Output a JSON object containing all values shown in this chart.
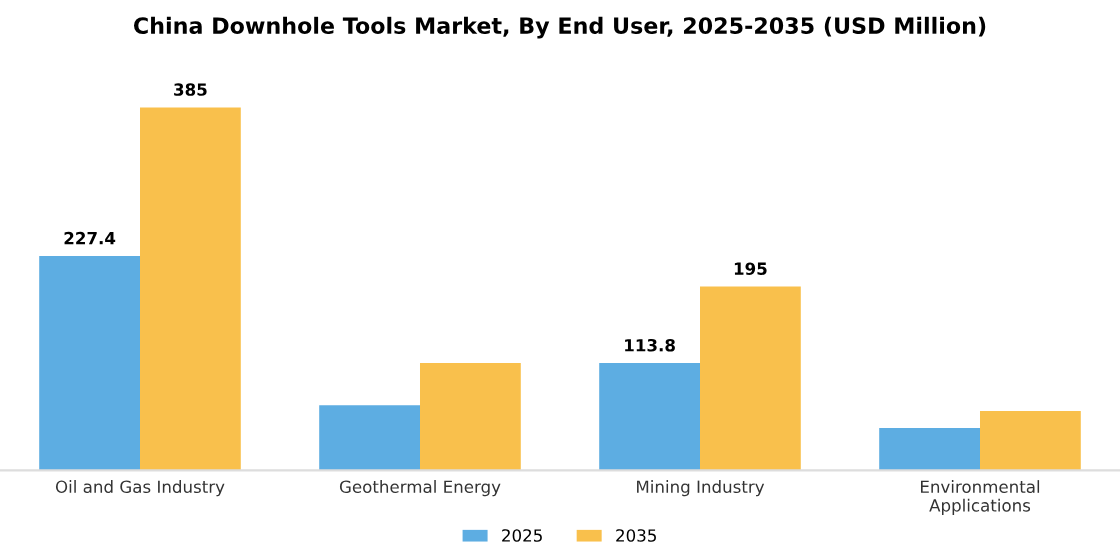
{
  "chart_data": {
    "type": "bar",
    "title": "China Downhole Tools Market, By End User, 2025-2035 (USD Million)",
    "categories": [
      "Oil and Gas Industry",
      "Geothermal Energy",
      "Mining Industry",
      "Environmental\nApplications"
    ],
    "series": [
      {
        "name": "2025",
        "color": "#5dade2",
        "values": [
          227.4,
          69,
          113.8,
          45
        ],
        "value_labels": [
          "227.4",
          null,
          "113.8",
          null
        ]
      },
      {
        "name": "2035",
        "color": "#f9c04c",
        "values": [
          385,
          114,
          195,
          63
        ],
        "value_labels": [
          "385",
          null,
          "195",
          null
        ]
      }
    ],
    "legend": "bottom",
    "grid": false
  }
}
